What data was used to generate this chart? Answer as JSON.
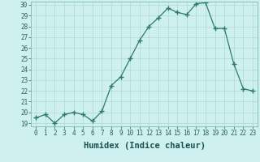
{
  "x": [
    0,
    1,
    2,
    3,
    4,
    5,
    6,
    7,
    8,
    9,
    10,
    11,
    12,
    13,
    14,
    15,
    16,
    17,
    18,
    19,
    20,
    21,
    22,
    23
  ],
  "y": [
    19.5,
    19.8,
    19.0,
    19.8,
    20.0,
    19.8,
    19.2,
    20.1,
    22.5,
    23.3,
    25.0,
    26.7,
    28.0,
    28.8,
    29.7,
    29.3,
    29.1,
    30.1,
    30.2,
    27.8,
    27.8,
    24.5,
    22.2,
    22.0
  ],
  "xlabel": "Humidex (Indice chaleur)",
  "ylim": [
    19,
    30
  ],
  "xlim": [
    -0.5,
    23.5
  ],
  "yticks": [
    19,
    20,
    21,
    22,
    23,
    24,
    25,
    26,
    27,
    28,
    29,
    30
  ],
  "xticks": [
    0,
    1,
    2,
    3,
    4,
    5,
    6,
    7,
    8,
    9,
    10,
    11,
    12,
    13,
    14,
    15,
    16,
    17,
    18,
    19,
    20,
    21,
    22,
    23
  ],
  "line_color": "#2d7a6b",
  "marker": "+",
  "marker_size": 4,
  "bg_color": "#cef0ee",
  "grid_color": "#b0d8d5",
  "fig_bg": "#cef0ee",
  "tick_color": "#2d6060",
  "label_color": "#1a5050",
  "tick_fontsize": 5.5,
  "xlabel_fontsize": 7.5
}
